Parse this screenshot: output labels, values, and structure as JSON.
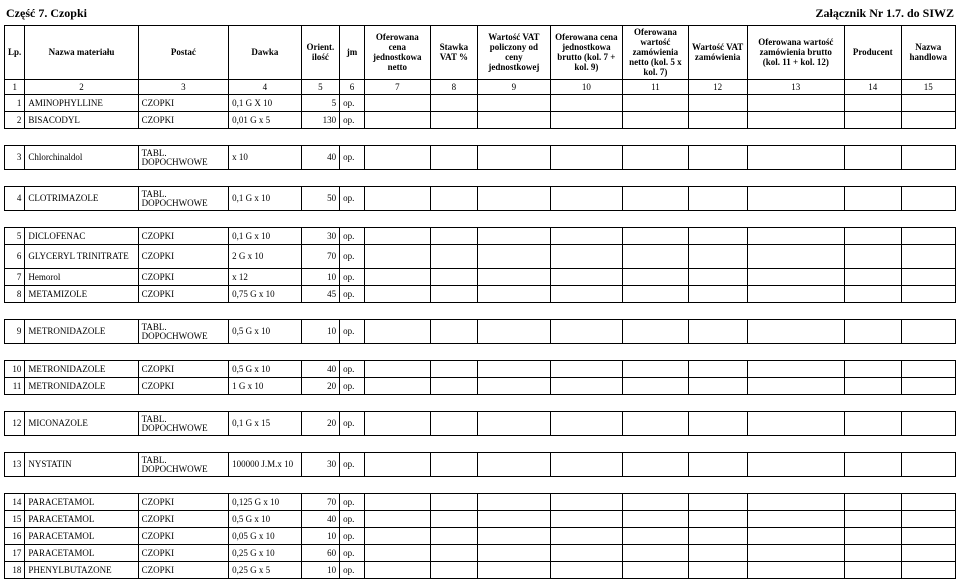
{
  "top_left": "Część 7. Czopki",
  "top_right": "Załącznik Nr 1.7. do SIWZ",
  "headers": [
    "Lp.",
    "Nazwa materiału",
    "Postać",
    "Dawka",
    "Orient. ilość",
    "jm",
    "Oferowana cena jednostkowa netto",
    "Stawka VAT %",
    "Wartość VAT policzony od ceny jednostkowej",
    "Oferowana cena jednostkowa brutto (kol. 7 + kol. 9)",
    "Oferowana wartość zamówienia netto (kol. 5 x kol. 7)",
    "Wartość VAT zamówienia",
    "Oferowana wartość zamówienia brutto (kol. 11 + kol. 12)",
    "Producent",
    "Nazwa handlowa"
  ],
  "col_numbers": [
    "1",
    "2",
    "3",
    "4",
    "5",
    "6",
    "7",
    "8",
    "9",
    "10",
    "11",
    "12",
    "13",
    "14",
    "15"
  ],
  "groups": [
    {
      "rows": [
        {
          "lp": "1",
          "name": "AMINOPHYLLINE",
          "form": "CZOPKI",
          "dose": "0,1 G X 10",
          "qty": "5",
          "unit": "op."
        },
        {
          "lp": "2",
          "name": "BISACODYL",
          "form": "CZOPKI",
          "dose": "0,01 G x 5",
          "qty": "130",
          "unit": "op."
        }
      ]
    },
    {
      "rows": [
        {
          "lp": "3",
          "name": "Chlorchinaldol",
          "form": "TABL. DOPOCHWOWE",
          "dose": "x 10",
          "qty": "40",
          "unit": "op.",
          "tall": true
        }
      ]
    },
    {
      "rows": [
        {
          "lp": "4",
          "name": "CLOTRIMAZOLE",
          "form": "TABL. DOPOCHWOWE",
          "dose": "0,1 G x 10",
          "qty": "50",
          "unit": "op.",
          "tall": true
        }
      ]
    },
    {
      "rows": [
        {
          "lp": "5",
          "name": "DICLOFENAC",
          "form": "CZOPKI",
          "dose": "0,1 G x 10",
          "qty": "30",
          "unit": "op."
        },
        {
          "lp": "6",
          "name": "GLYCERYL TRINITRATE",
          "form": "CZOPKI",
          "dose": "2 G x 10",
          "qty": "70",
          "unit": "op.",
          "tall": true
        },
        {
          "lp": "7",
          "name": "Hemorol",
          "form": "CZOPKI",
          "dose": "x 12",
          "qty": "10",
          "unit": "op."
        },
        {
          "lp": "8",
          "name": "METAMIZOLE",
          "form": "CZOPKI",
          "dose": "0,75 G x 10",
          "qty": "45",
          "unit": "op."
        }
      ]
    },
    {
      "rows": [
        {
          "lp": "9",
          "name": "METRONIDAZOLE",
          "form": "TABL. DOPOCHWOWE",
          "dose": "0,5 G x 10",
          "qty": "10",
          "unit": "op.",
          "tall": true
        }
      ]
    },
    {
      "rows": [
        {
          "lp": "10",
          "name": "METRONIDAZOLE",
          "form": "CZOPKI",
          "dose": "0,5 G x 10",
          "qty": "40",
          "unit": "op."
        },
        {
          "lp": "11",
          "name": "METRONIDAZOLE",
          "form": "CZOPKI",
          "dose": "1 G x 10",
          "qty": "20",
          "unit": "op."
        }
      ]
    },
    {
      "rows": [
        {
          "lp": "12",
          "name": "MICONAZOLE",
          "form": "TABL. DOPOCHWOWE",
          "dose": "0,1 G x 15",
          "qty": "20",
          "unit": "op.",
          "tall": true
        }
      ]
    },
    {
      "rows": [
        {
          "lp": "13",
          "name": "NYSTATIN",
          "form": "TABL. DOPOCHWOWE",
          "dose": "100000 J.M.x 10",
          "qty": "30",
          "unit": "op.",
          "tall": true
        }
      ]
    },
    {
      "rows": [
        {
          "lp": "14",
          "name": "PARACETAMOL",
          "form": "CZOPKI",
          "dose": "0,125 G x 10",
          "qty": "70",
          "unit": "op."
        },
        {
          "lp": "15",
          "name": "PARACETAMOL",
          "form": "CZOPKI",
          "dose": "0,5 G x 10",
          "qty": "40",
          "unit": "op."
        },
        {
          "lp": "16",
          "name": "PARACETAMOL",
          "form": "CZOPKI",
          "dose": "0,05 G x 10",
          "qty": "10",
          "unit": "op."
        },
        {
          "lp": "17",
          "name": "PARACETAMOL",
          "form": "CZOPKI",
          "dose": "0,25 G x 10",
          "qty": "60",
          "unit": "op."
        },
        {
          "lp": "18",
          "name": "PHENYLBUTAZONE",
          "form": "CZOPKI",
          "dose": "0,25 G x 5",
          "qty": "10",
          "unit": "op."
        }
      ]
    }
  ]
}
